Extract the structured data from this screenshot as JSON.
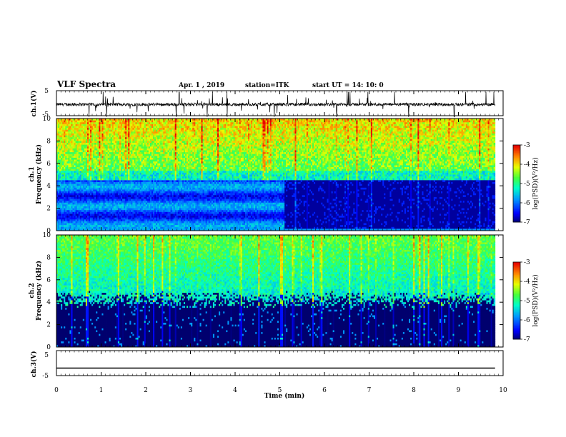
{
  "header": {
    "title": "VLF Spectra",
    "date": "Apr. 1 , 2019",
    "station": "station=ITK",
    "start": "start UT =  14: 10: 0"
  },
  "chart_data": [
    {
      "type": "line",
      "panel": "ch1-waveform",
      "ylabel": "ch.1(V)",
      "yticks": [
        "5",
        "-5"
      ],
      "ylim": [
        -5,
        5
      ],
      "xlim": [
        0,
        10
      ]
    },
    {
      "type": "heatmap",
      "panel": "ch1-spectrogram",
      "ylabel_channel": "ch.1",
      "ylabel": "Frequency (kHz)",
      "yticks": [
        "0",
        "2",
        "4",
        "6",
        "8",
        "10"
      ],
      "ylim": [
        0,
        10
      ],
      "xlim": [
        0,
        9.82
      ],
      "colorbar": {
        "label": "log(PSD)(V²/Hz)",
        "ticks": [
          "-3",
          "-4",
          "-5",
          "-6",
          "-7"
        ],
        "range": [
          -7,
          -3
        ],
        "colors": [
          "#000066",
          "#0000ff",
          "#00a0ff",
          "#00ffc0",
          "#40ff40",
          "#ffff00",
          "#ff8000",
          "#ff0000",
          "#ffffff"
        ]
      },
      "features": [
        {
          "x_range": [
            0,
            5.1
          ],
          "band_kHz": [
            0,
            4.5
          ],
          "description_level": -5.8
        },
        {
          "x_range": [
            5.1,
            9.82
          ],
          "band_kHz": [
            0,
            4.5
          ],
          "description_level": -6.9
        },
        {
          "x_range": [
            0,
            9.82
          ],
          "band_kHz": [
            4.5,
            10
          ],
          "description_level": -4.2
        }
      ]
    },
    {
      "type": "heatmap",
      "panel": "ch2-spectrogram",
      "ylabel_channel": "ch.2",
      "ylabel": "Frequency (kHz)",
      "yticks": [
        "0",
        "2",
        "4",
        "6",
        "8",
        "10"
      ],
      "ylim": [
        0,
        10
      ],
      "xlim": [
        0,
        9.82
      ],
      "colorbar": {
        "label": "log(PSD)(V²/Hz)",
        "ticks": [
          "-3",
          "-4",
          "-5",
          "-6",
          "-7"
        ],
        "range": [
          -7,
          -3
        ]
      }
    },
    {
      "type": "line",
      "panel": "ch3-waveform",
      "ylabel": "ch.3(V)",
      "yticks": [
        "5",
        "-5"
      ],
      "ylim": [
        -5,
        5
      ],
      "value": -2,
      "xlim": [
        0,
        9.82
      ]
    }
  ],
  "x_axis": {
    "title": "Time (min)",
    "ticks": [
      "0",
      "1",
      "2",
      "3",
      "4",
      "5",
      "6",
      "7",
      "8",
      "9",
      "10"
    ]
  }
}
